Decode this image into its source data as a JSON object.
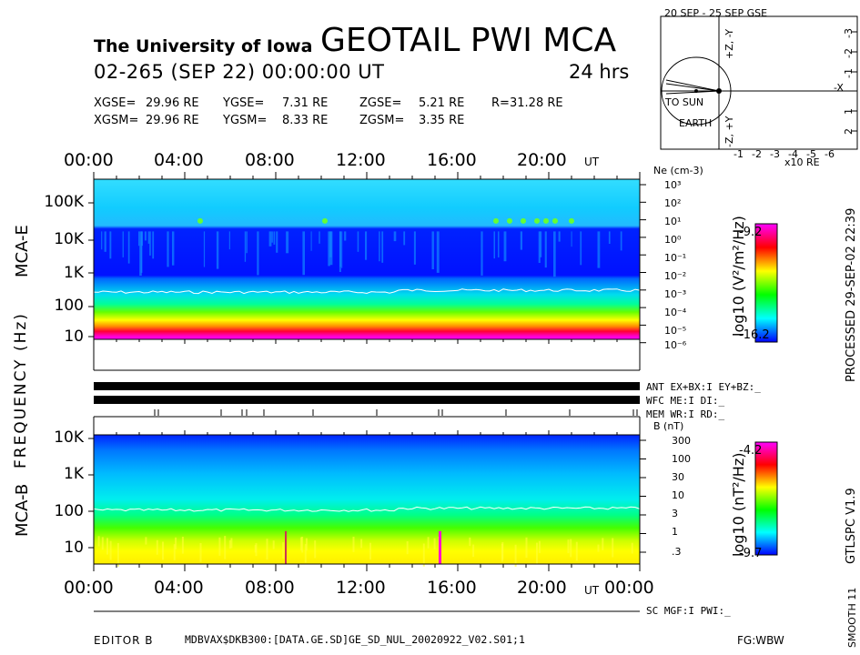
{
  "header": {
    "institution": "The University of Iowa",
    "title": "GEOTAIL PWI MCA",
    "date_line": "02-265 (SEP 22) 00:00:00 UT",
    "duration": "24 hrs"
  },
  "position": {
    "xgse_label": "XGSE=",
    "xgse": "29.96 RE",
    "ygse_label": "YGSE=",
    "ygse": "7.31 RE",
    "zgse_label": "ZGSE=",
    "zgse": "5.21 RE",
    "r_label": "R=",
    "r": "31.28 RE",
    "xgsm_label": "XGSM=",
    "xgsm": "29.96 RE",
    "ygsm_label": "YGSM=",
    "ygsm": "8.33 RE",
    "zgsm_label": "ZGSM=",
    "zgsm": "3.35 RE"
  },
  "orbit": {
    "title": "20 SEP - 25 SEP  GSE",
    "to_sun": "TO SUN",
    "earth": "EARTH",
    "x_unit": "x10 RE",
    "x_ticks": [
      "-1",
      "-2",
      "-3",
      "-4",
      "-5",
      "-6"
    ],
    "y_ticks": [
      "-3",
      "-2",
      "-1",
      "1",
      "2",
      "3"
    ],
    "axis_labels": [
      "-X",
      "+Z, -Y",
      "-Z, +Y"
    ]
  },
  "time_axis": {
    "top_ticks": [
      "00:00",
      "04:00",
      "08:00",
      "12:00",
      "16:00",
      "20:00"
    ],
    "top_unit": "UT",
    "bottom_ticks": [
      "00:00",
      "04:00",
      "08:00",
      "12:00",
      "16:00",
      "20:00",
      "00:00"
    ],
    "bottom_unit": "UT"
  },
  "mca_e": {
    "panel_label": "MCA-E",
    "y_ticks": [
      "100K",
      "10K",
      "1K",
      "100",
      "10"
    ],
    "right_axis_title": "Ne (cm-3)",
    "right_ticks": [
      "10³",
      "10²",
      "10¹",
      "10⁰",
      "10⁻¹",
      "10⁻²",
      "10⁻³",
      "10⁻⁴",
      "10⁻⁵",
      "10⁻⁶"
    ],
    "colorbar_label": "log10 (V²/m²/Hz)",
    "colorbar_max": "-9.2",
    "colorbar_min": "-16.2"
  },
  "frequency_label": "FREQUENCY (Hz)",
  "status": {
    "ant": "ANT EX+BX:I EY+BZ:_",
    "wfc": "WFC ME:I    DI:_",
    "mem": "MEM WR:I    RD:_",
    "sc": "SC MGF:I   PWI:_"
  },
  "mca_b": {
    "panel_label": "MCA-B",
    "y_ticks": [
      "10K",
      "1K",
      "100",
      "10"
    ],
    "right_axis_title": "B (nT)",
    "right_ticks": [
      "300",
      "100",
      "30",
      "10",
      "3",
      "1",
      ".3"
    ],
    "colorbar_label": "log10 (nT²/Hz)",
    "colorbar_max": "-4.2",
    "colorbar_min": "-9.7"
  },
  "side_text": {
    "processed": "PROCESSED 29-SEP-02  22:39",
    "version": "GTLSPC  V1.9",
    "smooth": "SMOOTH 11"
  },
  "footer": {
    "editor": "EDITOR B",
    "path": "MDBVAX$DKB300:[DATA.GE.SD]GE_SD_NUL_20020922_V02.S01;1",
    "fg": "FG:WBW"
  },
  "chart_data": [
    {
      "type": "heatmap",
      "title": "MCA-E",
      "xlabel": "UT",
      "ylabel": "FREQUENCY (Hz)",
      "x": [
        "00:00",
        "04:00",
        "08:00",
        "12:00",
        "16:00",
        "20:00",
        "24:00"
      ],
      "y_scale": "log",
      "ylim": [
        5.6,
        311000
      ],
      "y_ticks": [
        100000,
        10000,
        1000,
        100,
        10
      ],
      "color_scale": "log10 (V²/m²/Hz)",
      "clim": [
        -16.2,
        -9.2
      ],
      "plasma_line_freq_hz": 140,
      "right_axis": {
        "label": "Ne (cm-3)",
        "ticks": [
          1000,
          100,
          10,
          1,
          0.1,
          0.01,
          0.001,
          0.0001,
          1e-05,
          1e-06
        ]
      }
    },
    {
      "type": "heatmap",
      "title": "MCA-B",
      "xlabel": "UT",
      "ylabel": "FREQUENCY (Hz)",
      "x": [
        "00:00",
        "04:00",
        "08:00",
        "12:00",
        "16:00",
        "20:00",
        "24:00"
      ],
      "y_scale": "log",
      "ylim": [
        5.6,
        12500
      ],
      "y_ticks": [
        10000,
        1000,
        100,
        10
      ],
      "color_scale": "log10 (nT²/Hz)",
      "clim": [
        -9.7,
        -4.2
      ],
      "plasma_line_freq_hz": 140,
      "right_axis": {
        "label": "B (nT)",
        "ticks": [
          300,
          100,
          30,
          10,
          3,
          1,
          0.3
        ]
      }
    }
  ],
  "colors": {
    "spectrum": [
      "#ff00ff",
      "#ff0000",
      "#ffff00",
      "#00ff00",
      "#00ffff",
      "#0000ff"
    ]
  }
}
